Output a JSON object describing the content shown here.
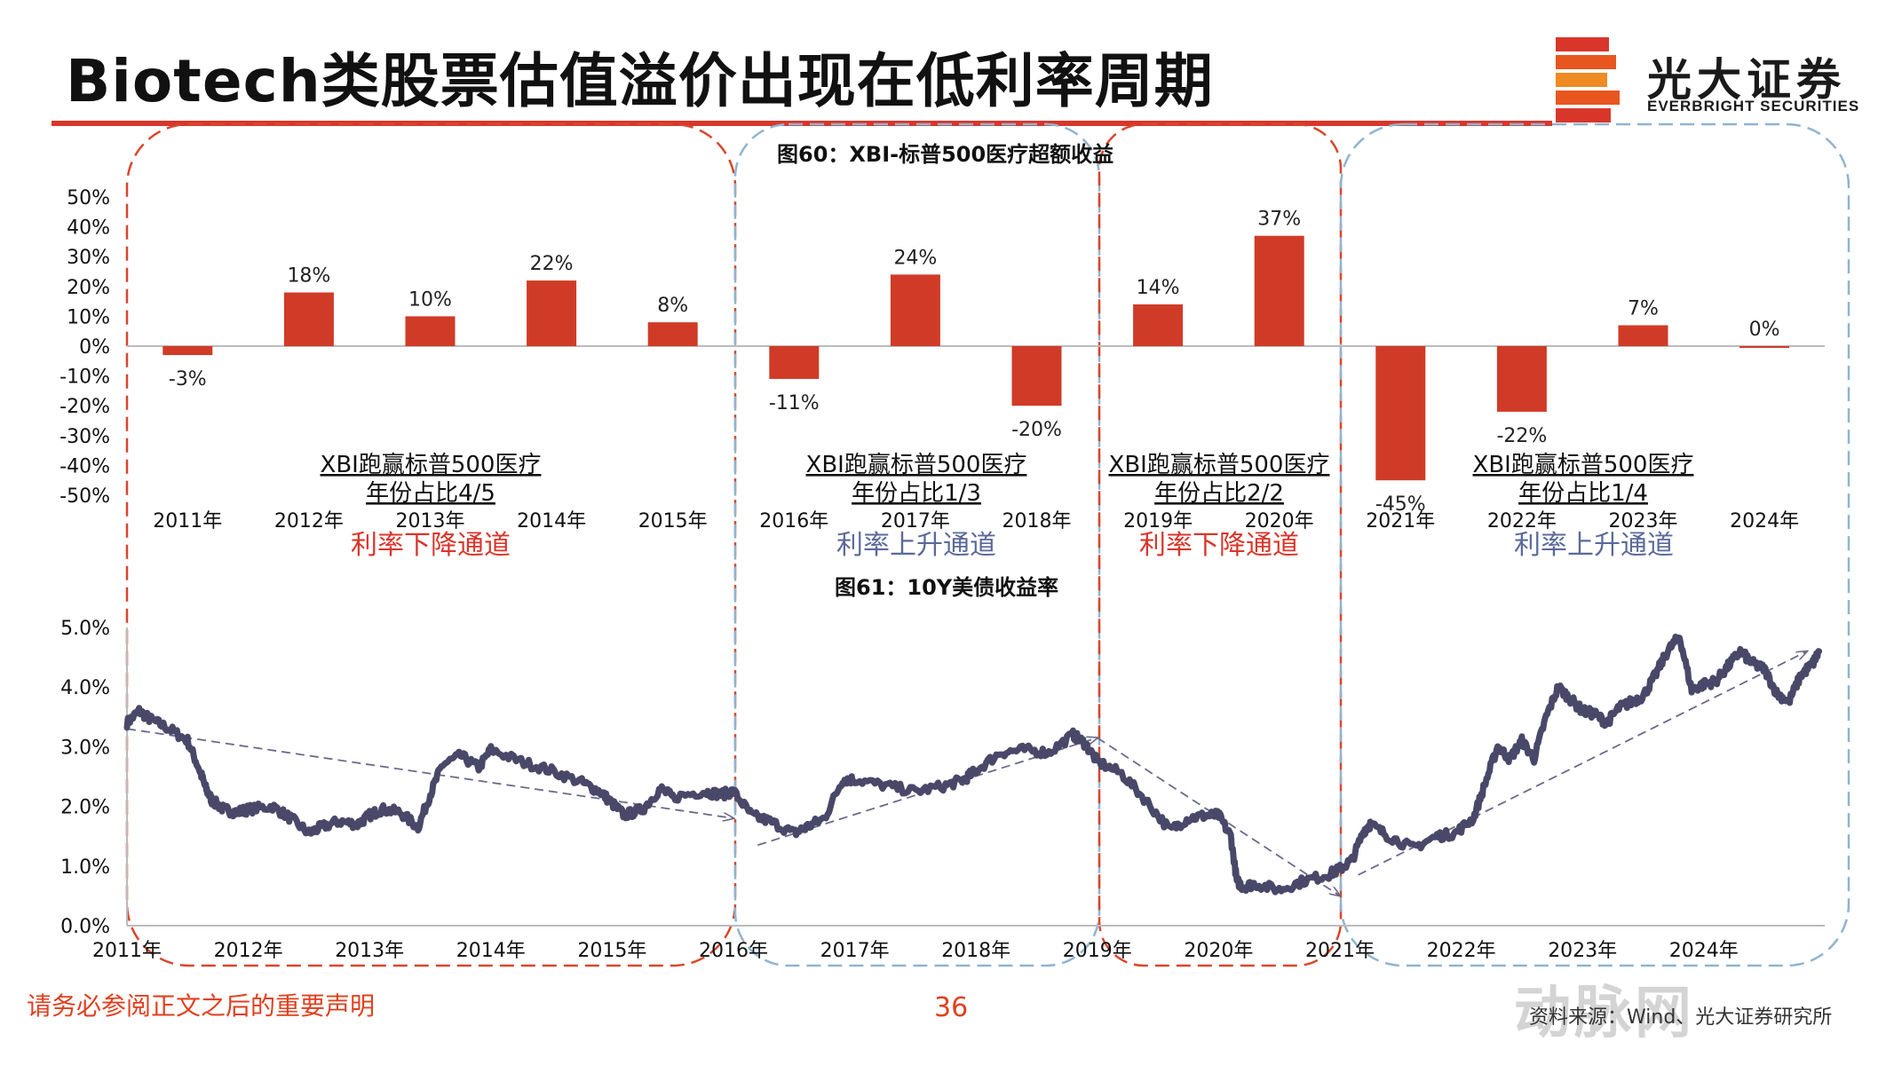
{
  "slide": {
    "title": "Biotech类股票估值溢价出现在低利率周期",
    "logo_cn": "光大证券",
    "logo_en": "EVERBRIGHT SECURITIES",
    "footer_note": "请务必参阅正文之后的重要声明",
    "page_number": "36",
    "source": "资料来源：Wind、光大证券研究所",
    "watermark": "动脉网",
    "brand_color": "#d9362b"
  },
  "chart_data": [
    {
      "type": "bar",
      "title": "图60：XBI-标普500医疗超额收益",
      "categories": [
        "2011年",
        "2012年",
        "2013年",
        "2014年",
        "2015年",
        "2016年",
        "2017年",
        "2018年",
        "2019年",
        "2020年",
        "2021年",
        "2022年",
        "2023年",
        "2024年"
      ],
      "values": [
        -3,
        18,
        10,
        22,
        8,
        -11,
        24,
        -20,
        14,
        37,
        -45,
        -22,
        7,
        0
      ],
      "value_labels": [
        "-3%",
        "18%",
        "10%",
        "22%",
        "8%",
        "-11%",
        "24%",
        "-20%",
        "14%",
        "37%",
        "-45%",
        "-22%",
        "7%",
        "0%"
      ],
      "ylim": [
        -50,
        50
      ],
      "yticks": [
        "50%",
        "40%",
        "30%",
        "20%",
        "10%",
        "0%",
        "-10%",
        "-20%",
        "-30%",
        "-40%",
        "-50%"
      ],
      "bar_color": "#d03b27"
    },
    {
      "type": "line",
      "title": "图61：10Y美债收益率",
      "xlabels": [
        "2011年",
        "2012年",
        "2013年",
        "2014年",
        "2015年",
        "2016年",
        "2017年",
        "2018年",
        "2019年",
        "2020年",
        "2021年",
        "2022年",
        "2023年",
        "2024年"
      ],
      "yticks": [
        "5.0%",
        "4.0%",
        "3.0%",
        "2.0%",
        "1.0%",
        "0.0%"
      ],
      "ylim": [
        0,
        5
      ],
      "x": [
        2011.0,
        2011.1,
        2011.2,
        2011.35,
        2011.5,
        2011.6,
        2011.65,
        2011.7,
        2011.8,
        2011.9,
        2012.0,
        2012.2,
        2012.35,
        2012.5,
        2012.6,
        2012.75,
        2012.9,
        2013.0,
        2013.1,
        2013.25,
        2013.4,
        2013.5,
        2013.6,
        2013.75,
        2013.9,
        2014.0,
        2014.25,
        2014.5,
        2014.75,
        2014.9,
        2015.0,
        2015.1,
        2015.25,
        2015.4,
        2015.5,
        2015.75,
        2015.9,
        2016.0,
        2016.15,
        2016.3,
        2016.5,
        2016.6,
        2016.75,
        2016.9,
        2017.0,
        2017.25,
        2017.5,
        2017.75,
        2017.9,
        2018.0,
        2018.2,
        2018.4,
        2018.6,
        2018.8,
        2018.9,
        2019.0,
        2019.2,
        2019.4,
        2019.6,
        2019.75,
        2019.9,
        2020.0,
        2020.1,
        2020.15,
        2020.2,
        2020.3,
        2020.5,
        2020.7,
        2020.9,
        2021.0,
        2021.1,
        2021.2,
        2021.25,
        2021.4,
        2021.6,
        2021.8,
        2021.95,
        2022.1,
        2022.2,
        2022.3,
        2022.4,
        2022.5,
        2022.6,
        2022.7,
        2022.8,
        2022.9,
        2023.0,
        2023.1,
        2023.2,
        2023.3,
        2023.4,
        2023.5,
        2023.6,
        2023.7,
        2023.8,
        2023.9,
        2024.0,
        2024.1,
        2024.2,
        2024.3,
        2024.4,
        2024.5,
        2024.6,
        2024.7,
        2024.8,
        2024.9,
        2024.95
      ],
      "y": [
        3.4,
        3.6,
        3.45,
        3.3,
        3.1,
        2.6,
        2.3,
        2.1,
        1.95,
        1.9,
        1.95,
        2.0,
        1.8,
        1.55,
        1.65,
        1.75,
        1.7,
        1.85,
        1.95,
        1.9,
        1.65,
        2.2,
        2.7,
        2.85,
        2.65,
        2.95,
        2.75,
        2.6,
        2.4,
        2.25,
        2.05,
        1.85,
        1.95,
        2.3,
        2.15,
        2.25,
        2.2,
        2.25,
        1.85,
        1.75,
        1.55,
        1.65,
        1.8,
        2.45,
        2.45,
        2.35,
        2.25,
        2.35,
        2.45,
        2.6,
        2.9,
        2.95,
        2.9,
        3.2,
        3.05,
        2.75,
        2.55,
        2.1,
        1.6,
        1.8,
        1.85,
        1.85,
        1.5,
        0.75,
        0.65,
        0.7,
        0.6,
        0.75,
        0.85,
        0.95,
        1.1,
        1.6,
        1.7,
        1.5,
        1.3,
        1.5,
        1.55,
        1.8,
        2.4,
        3.0,
        2.8,
        3.1,
        2.8,
        3.5,
        4.0,
        3.8,
        3.6,
        3.55,
        3.4,
        3.65,
        3.75,
        3.85,
        4.2,
        4.6,
        4.85,
        3.95,
        4.05,
        4.1,
        4.35,
        4.6,
        4.4,
        4.3,
        3.9,
        3.75,
        4.2,
        4.4,
        4.6
      ],
      "line_color": "#4a4869"
    }
  ],
  "regimes": [
    {
      "label": "XBI跑赢标普500医疗",
      "share": "年份占比4/5",
      "channel": "利率下降通道",
      "color": "#d9362b"
    },
    {
      "label": "XBI跑赢标普500医疗",
      "share": "年份占比1/3",
      "channel": "利率上升通道",
      "color": "#5b6a9a"
    },
    {
      "label": "XBI跑赢标普500医疗",
      "share": "年份占比2/2",
      "channel": "利率下降通道",
      "color": "#d9362b"
    },
    {
      "label": "XBI跑赢标普500医疗",
      "share": "年份占比1/4",
      "channel": "利率上升通道",
      "color": "#5b6a9a"
    }
  ],
  "trend_lines": [
    {
      "from": [
        2011.0,
        3.3
      ],
      "to": [
        2016.0,
        1.8
      ]
    },
    {
      "from": [
        2016.2,
        1.35
      ],
      "to": [
        2019.0,
        3.15
      ]
    },
    {
      "from": [
        2019.0,
        3.15
      ],
      "to": [
        2021.0,
        0.5
      ]
    },
    {
      "from": [
        2021.15,
        0.85
      ],
      "to": [
        2024.85,
        4.6
      ]
    }
  ]
}
